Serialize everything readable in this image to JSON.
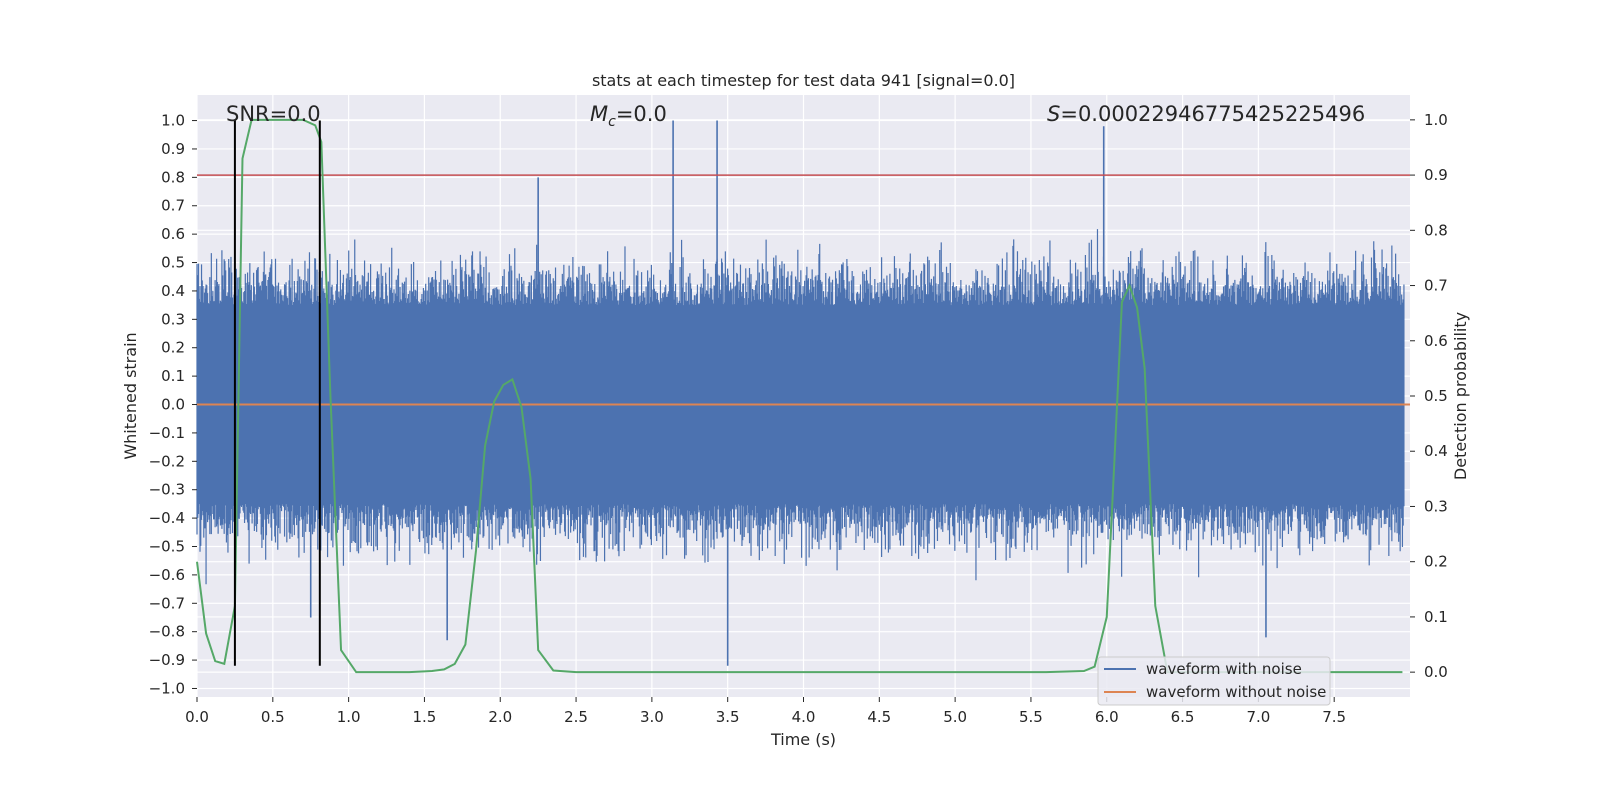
{
  "chart_data": {
    "type": "line",
    "title": "stats at each timestep for test data 941 [signal=0.0]",
    "xlabel": "Time (s)",
    "ylabel": "Whitened strain",
    "ylabel_right": "Detection probability",
    "xlim": [
      0.0,
      8.0
    ],
    "ylim": [
      -1.03,
      1.09
    ],
    "ylim_right": [
      -0.045,
      1.045
    ],
    "x_ticks": [
      "0.0",
      "0.5",
      "1.0",
      "1.5",
      "2.0",
      "2.5",
      "3.0",
      "3.5",
      "4.0",
      "4.5",
      "5.0",
      "5.5",
      "6.0",
      "6.5",
      "7.0",
      "7.5"
    ],
    "y_ticks": [
      "1.0",
      "0.9",
      "0.8",
      "0.7",
      "0.6",
      "0.5",
      "0.4",
      "0.3",
      "0.2",
      "0.1",
      "0.0",
      "−0.1",
      "−0.2",
      "−0.3",
      "−0.4",
      "−0.5",
      "−0.6",
      "−0.7",
      "−0.8",
      "−0.9",
      "−1.0"
    ],
    "y_ticks_right": [
      "1.0",
      "0.9",
      "0.8",
      "0.7",
      "0.6",
      "0.5",
      "0.4",
      "0.3",
      "0.2",
      "0.1",
      "0.0"
    ],
    "grid": true,
    "legend_location": "lower-right",
    "annotations": {
      "snr": "SNR=0.0",
      "mc_symbol": "M",
      "mc_sub": "c",
      "mc_value": "=0.0",
      "s_symbol": "S",
      "s_value": "=0.00022946775425225496"
    },
    "noise_envelope": {
      "description_source": "approximate upper/lower envelopes of the noisy whitened strain",
      "upper_typical": 0.35,
      "lower_typical": -0.35,
      "peaks_positive": [
        [
          3.14,
          1.0
        ],
        [
          3.43,
          1.0
        ],
        [
          5.98,
          0.98
        ],
        [
          2.25,
          0.8
        ]
      ],
      "peaks_negative": [
        [
          3.5,
          -0.92
        ],
        [
          1.65,
          -0.83
        ],
        [
          7.05,
          -0.82
        ],
        [
          0.75,
          -0.75
        ]
      ]
    },
    "series": [
      {
        "name": "waveform with noise",
        "color": "#4c72b0",
        "axis": "left"
      },
      {
        "name": "waveform without noise",
        "color": "#dd8452",
        "axis": "left",
        "x": [
          0.0,
          8.0
        ],
        "y": [
          0.0,
          0.0
        ]
      },
      {
        "name": "",
        "color": "#55a868",
        "axis": "right",
        "x": [
          0.0,
          0.06,
          0.12,
          0.18,
          0.25,
          0.3,
          0.36,
          0.42,
          0.55,
          0.7,
          0.78,
          0.82,
          0.88,
          0.95,
          1.05,
          1.2,
          1.4,
          1.55,
          1.63,
          1.7,
          1.77,
          1.84,
          1.9,
          1.96,
          2.02,
          2.08,
          2.14,
          2.2,
          2.25,
          2.35,
          2.5,
          3.0,
          4.0,
          5.0,
          5.6,
          5.85,
          5.92,
          6.0,
          6.05,
          6.1,
          6.15,
          6.2,
          6.25,
          6.32,
          6.4,
          6.5,
          7.0,
          7.5,
          7.95
        ],
        "y": [
          0.2,
          0.07,
          0.02,
          0.015,
          0.12,
          0.93,
          1.0,
          1.0,
          1.0,
          1.0,
          0.99,
          0.96,
          0.5,
          0.04,
          0.0,
          0.0,
          0.0,
          0.002,
          0.005,
          0.015,
          0.05,
          0.22,
          0.41,
          0.49,
          0.52,
          0.53,
          0.48,
          0.35,
          0.04,
          0.003,
          0.0,
          0.0,
          0.0,
          0.0,
          0.0,
          0.002,
          0.01,
          0.1,
          0.38,
          0.67,
          0.7,
          0.66,
          0.55,
          0.12,
          0.0,
          0.0,
          0.0,
          0.0,
          0.0
        ]
      }
    ],
    "hlines": [
      {
        "axis": "right",
        "y": 0.9,
        "color": "#c44e52"
      }
    ],
    "vlines": [
      {
        "x": 0.25,
        "ymin": -0.92,
        "ymax": 1.0,
        "color": "#000000"
      },
      {
        "x": 0.81,
        "ymin": -0.92,
        "ymax": 1.0,
        "color": "#000000"
      }
    ]
  }
}
